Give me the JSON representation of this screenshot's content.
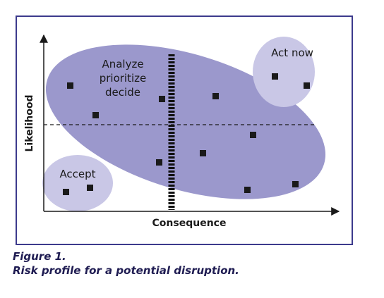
{
  "diagram": {
    "y_axis_label": "Likelihood",
    "x_axis_label": "Consequence",
    "regions": {
      "analyze": {
        "lines": [
          "Analyze",
          "prioritize",
          "decide"
        ]
      },
      "act_now": {
        "label": "Act now"
      },
      "accept": {
        "label": "Accept"
      }
    }
  },
  "caption": {
    "line1": "Figure 1.",
    "line2": "Risk profile for a potential disruption."
  },
  "colors": {
    "frame": "#3c3a8c",
    "big_ellipse": "#9b98cc",
    "small_ellipse": "#c9c7e6",
    "marker": "#1a1a1a",
    "caption": "#1f1c52"
  }
}
